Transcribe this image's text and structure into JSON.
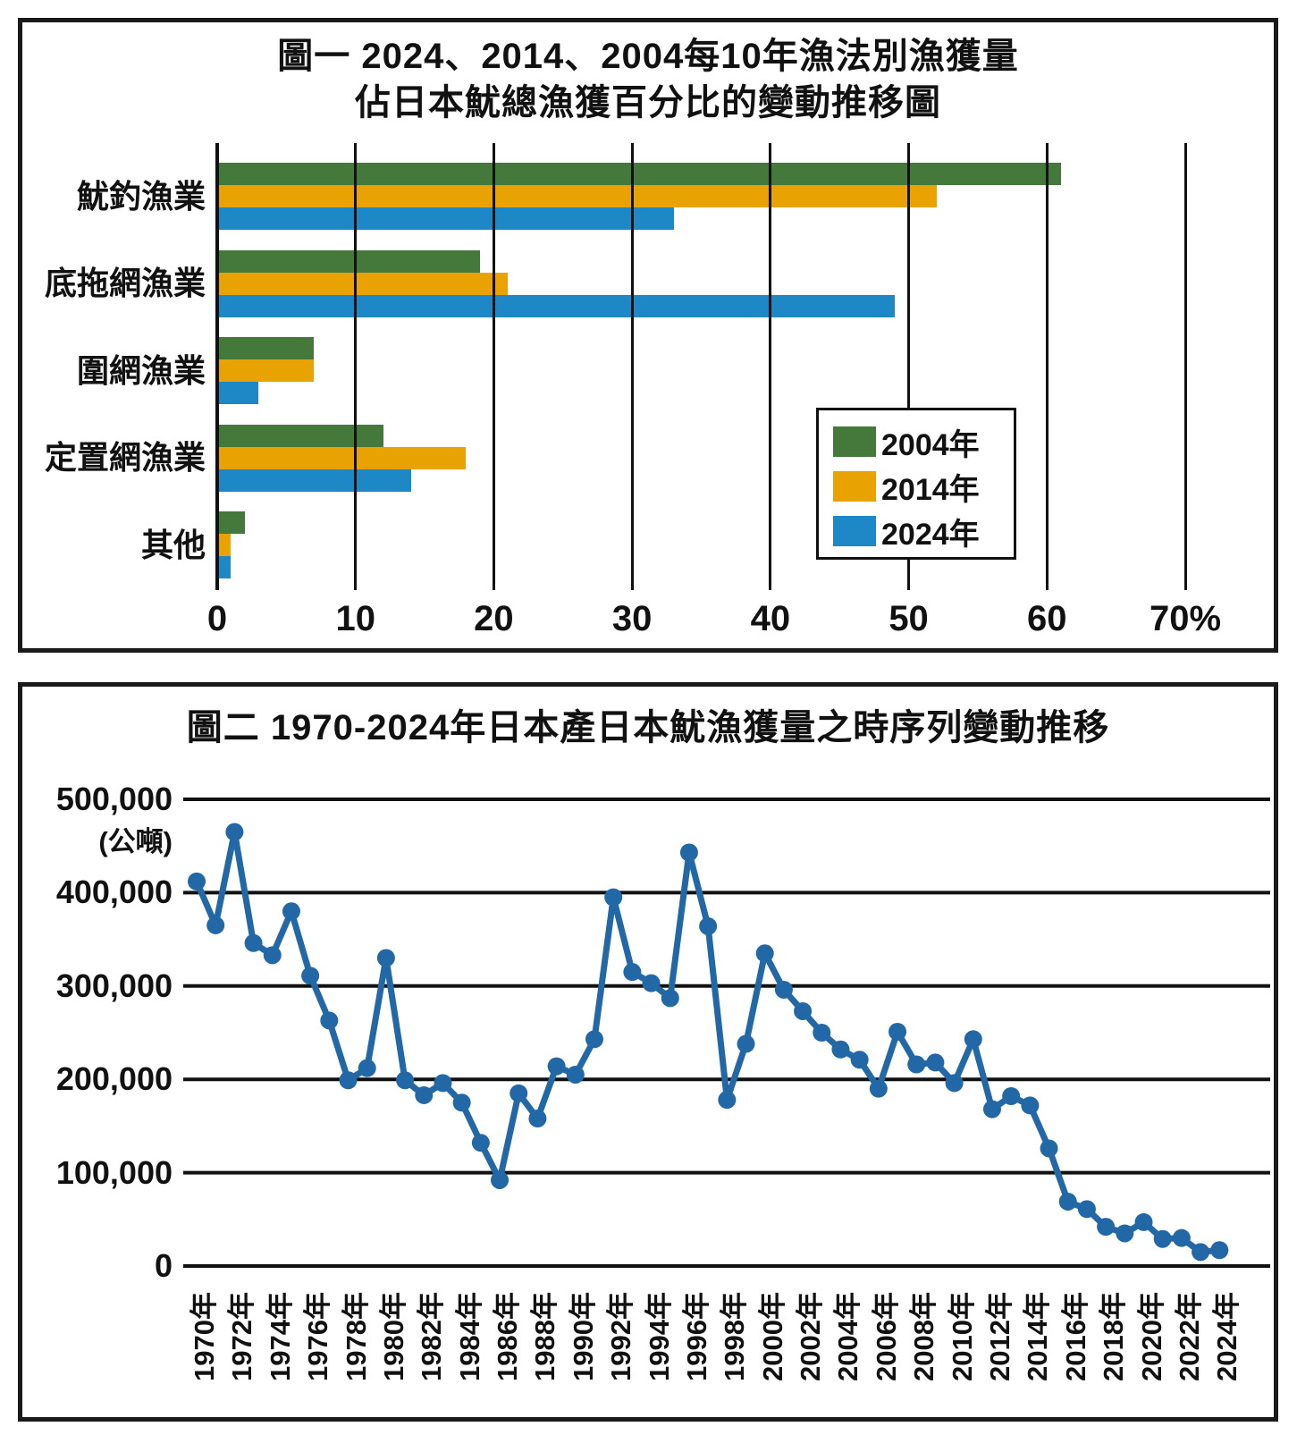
{
  "chart_data": [
    {
      "type": "bar",
      "orientation": "horizontal",
      "title_lines": [
        "圖一  2024、2014、2004每10年漁法別漁獲量",
        "佔日本魷總漁獲百分比的變動推移圖"
      ],
      "categories": [
        "魷釣漁業",
        "底拖網漁業",
        "圍網漁業",
        "定置網漁業",
        "其他"
      ],
      "series": [
        {
          "name": "2004年",
          "color": "#45793C",
          "values": [
            61,
            19,
            7,
            12,
            2
          ]
        },
        {
          "name": "2014年",
          "color": "#E8A303",
          "values": [
            52,
            21,
            7,
            18,
            1
          ]
        },
        {
          "name": "2024年",
          "color": "#1E87C6",
          "values": [
            33,
            49,
            3,
            14,
            1
          ]
        }
      ],
      "xlim": [
        0,
        70
      ],
      "x_ticks": [
        0,
        10,
        20,
        30,
        40,
        50,
        60,
        70
      ],
      "x_tick_labels": [
        "0",
        "10",
        "20",
        "30",
        "40",
        "50",
        "60",
        "70%"
      ],
      "unit": "%",
      "grid": "vertical",
      "legend": {
        "position": "right-center",
        "entries": [
          "2004年",
          "2014年",
          "2024年"
        ]
      }
    },
    {
      "type": "line",
      "title": "圖二 1970-2024年日本產日本魷漁獲量之時序列變動推移",
      "y_unit_label": "(公噸)",
      "line_color": "#2368A6",
      "marker": "circle",
      "ylim": [
        0,
        500000
      ],
      "y_ticks": [
        500000,
        400000,
        300000,
        200000,
        100000,
        0
      ],
      "y_tick_labels": [
        "500,000",
        "400,000",
        "300,000",
        "200,000",
        "100,000",
        "0"
      ],
      "grid": "horizontal",
      "x_tick_labels": [
        "1970年",
        "1972年",
        "1974年",
        "1976年",
        "1978年",
        "1980年",
        "1982年",
        "1984年",
        "1986年",
        "1988年",
        "1990年",
        "1992年",
        "1994年",
        "1996年",
        "1998年",
        "2000年",
        "2002年",
        "2004年",
        "2006年",
        "2008年",
        "2010年",
        "2012年",
        "2014年",
        "2016年",
        "2018年",
        "2020年",
        "2022年",
        "2024年"
      ],
      "years": [
        1970,
        1971,
        1972,
        1973,
        1974,
        1975,
        1976,
        1977,
        1978,
        1979,
        1980,
        1981,
        1982,
        1983,
        1984,
        1985,
        1986,
        1987,
        1988,
        1989,
        1990,
        1991,
        1992,
        1993,
        1994,
        1995,
        1996,
        1997,
        1998,
        1999,
        2000,
        2001,
        2002,
        2003,
        2004,
        2005,
        2006,
        2007,
        2008,
        2009,
        2010,
        2011,
        2012,
        2013,
        2014,
        2015,
        2016,
        2017,
        2018,
        2019,
        2020,
        2021,
        2022,
        2023,
        2024
      ],
      "values": [
        412000,
        365000,
        465000,
        346000,
        333000,
        380000,
        311000,
        263000,
        199000,
        212000,
        330000,
        199000,
        183000,
        196000,
        175000,
        132000,
        92000,
        185000,
        158000,
        214000,
        205000,
        243000,
        395000,
        315000,
        303000,
        287000,
        443000,
        364000,
        178000,
        238000,
        335000,
        296000,
        273000,
        250000,
        232000,
        221000,
        190000,
        251000,
        216000,
        218000,
        196000,
        243000,
        168000,
        182000,
        172000,
        126000,
        69000,
        61000,
        42000,
        35000,
        47000,
        29000,
        30000,
        15000,
        17000
      ]
    }
  ]
}
